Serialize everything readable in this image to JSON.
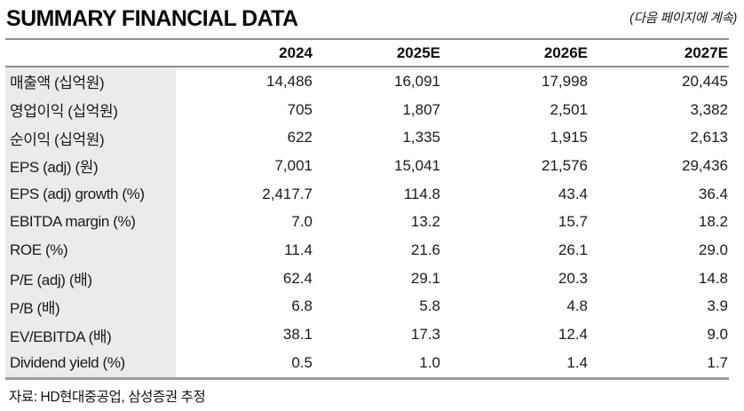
{
  "header": {
    "title": "SUMMARY FINANCIAL DATA",
    "continuation_note": "(다음 페이지에 계속)"
  },
  "table": {
    "columns": [
      "2024",
      "2025E",
      "2026E",
      "2027E"
    ],
    "rows": [
      {
        "label": "매출액 (십억원)",
        "values": [
          "14,486",
          "16,091",
          "17,998",
          "20,445"
        ]
      },
      {
        "label": "영업이익 (십억원)",
        "values": [
          "705",
          "1,807",
          "2,501",
          "3,382"
        ]
      },
      {
        "label": "순이익 (십억원)",
        "values": [
          "622",
          "1,335",
          "1,915",
          "2,613"
        ]
      },
      {
        "label": "EPS (adj) (원)",
        "values": [
          "7,001",
          "15,041",
          "21,576",
          "29,436"
        ]
      },
      {
        "label": "EPS (adj) growth (%)",
        "values": [
          "2,417.7",
          "114.8",
          "43.4",
          "36.4"
        ]
      },
      {
        "label": "EBITDA margin (%)",
        "values": [
          "7.0",
          "13.2",
          "15.7",
          "18.2"
        ]
      },
      {
        "label": "ROE (%)",
        "values": [
          "11.4",
          "21.6",
          "26.1",
          "29.0"
        ]
      },
      {
        "label": "P/E (adj) (배)",
        "values": [
          "62.4",
          "29.1",
          "20.3",
          "14.8"
        ]
      },
      {
        "label": "P/B (배)",
        "values": [
          "6.8",
          "5.8",
          "4.8",
          "3.9"
        ]
      },
      {
        "label": "EV/EBITDA (배)",
        "values": [
          "38.1",
          "17.3",
          "12.4",
          "9.0"
        ]
      },
      {
        "label": "Dividend yield (%)",
        "values": [
          "0.5",
          "1.0",
          "1.4",
          "1.7"
        ]
      }
    ]
  },
  "footer": {
    "source_note": "자료: HD현대중공업, 삼성증권 추정"
  },
  "colors": {
    "label_column_bg": "#ebebeb",
    "rule_top": "#8f8f8f",
    "rule_bottom": "#9c9c9c",
    "text_primary": "#1a1a1a"
  }
}
